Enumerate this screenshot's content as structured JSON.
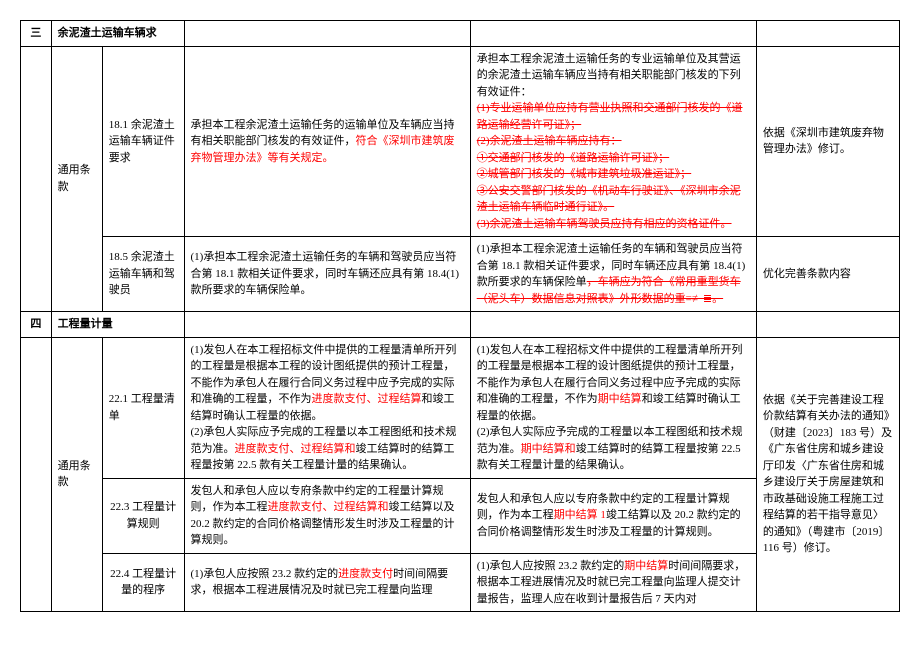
{
  "sections": {
    "s1": {
      "num": "三",
      "title": "余泥渣土运输车辆求",
      "category": "通用条款",
      "rows": {
        "r1": {
          "clause": "18.1 余泥渣土运输车辆证件要求",
          "old_p1": "承担本工程余泥渣土运输任务的运输单位及车辆应当持有相关职能部门核发的有效证件，",
          "old_red1": "符合《深圳市建筑废弃物管理办法》等有关规定。",
          "new_p1": "承担本工程余泥渣土运输任务的专业运输单位及其营运的余泥渣土运输车辆应当持有相关职能部门核发的下列有效证件：",
          "new_strike1": "(1)专业运输单位应持有营业执照和交通部门核发的《道路运输经营许可证》；",
          "new_strike2": "(2)余泥渣土运输车辆应持有：",
          "new_strike3": "①交通部门核发的《道路运输许可证》；",
          "new_strike4": "②城管部门核发的《城市建筑垃圾准运证》；",
          "new_strike5": "③公安交警部门核发的《机动车行驶证》、《深圳市余泥渣土运输车辆临时通行证》。",
          "new_strike6": "(3)余泥渣土运输车辆驾驶员应持有相应的资格证件。",
          "note": "依据《深圳市建筑废弃物管理办法》修订。"
        },
        "r2": {
          "clause": "18.5 余泥渣土运输车辆和驾驶员",
          "old": "(1)承担本工程余泥渣土运输任务的车辆和驾驶员应当符合第 18.1 款相关证件要求，同时车辆还应具有第 18.4(1)款所要求的车辆保险单。",
          "new_p1": "(1)承担本工程余泥渣土运输任务的车辆和驾驶员应当符合第 18.1 款相关证件要求，同时车辆还应具有第 18.4(1)款所要求的车辆保险单",
          "new_strike1": "，车辆应为符合《常用重型货车（泥头车）数据信息对照表》外形数据的重≡≢≣。",
          "note": "优化完善条款内容"
        }
      }
    },
    "s2": {
      "num": "四",
      "title": "工程量计量",
      "category": "通用条款",
      "note": "依据《关于完善建设工程价款结算有关办法的通知》（财建〔2023〕183 号）及《广东省住房和城乡建设厅印发〈广东省住房和城乡建设厅关于房屋建筑和市政基础设施工程施工过程结算的若干指导意见〉的通知》（粤建市〔2019〕116 号）修订。",
      "rows": {
        "r1": {
          "clause": "22.1 工程量清单",
          "old_p1": "(1)发包人在本工程招标文件中提供的工程量清单所开列的工程量是根据本工程的设计图纸提供的预计工程量，不能作为承包人在履行合同义务过程中应予完成的实际和准确的工程量，不作为",
          "old_red1": "进度款支付、过程结算",
          "old_p1b": "和竣工结算时确认工程量的依据。",
          "old_p2": "(2)承包人实际应予完成的工程量以本工程图纸和技术规范为准。",
          "old_red2": "进度款支付、过程结算和",
          "old_p2b": "竣工结算时的结算工程量按第 22.5 款有关工程量计量的结果确认。",
          "new_p1": "(1)发包人在本工程招标文件中提供的工程量清单所开列的工程量是根据本工程的设计图纸提供的预计工程量，不能作为承包人在履行合同义务过程中应予完成的实际和准确的工程量，不作为",
          "new_red1": "期中结算",
          "new_p1b": "和竣工结算时确认工程量的依据。",
          "new_p2": "(2)承包人实际应予完成的工程量以本工程图纸和技术规范为准。",
          "new_red2": "期中结算和",
          "new_p2b": "竣工结算时的结算工程量按第 22.5 款有关工程量计量的结果确认。"
        },
        "r2": {
          "clause": "22.3 工程量计算规则",
          "old_p1": "发包人和承包人应以专府条款中约定的工程量计算规则，作为本工程",
          "old_red1": "进度款支付、过程结算和",
          "old_p1b": "竣工结算以及 20.2 款约定的合同价格调整情形发生时涉及工程量的计算规则。",
          "new_p1": "发包人和承包人应以专府条款中约定的工程量计算规则，作为本工程",
          "new_red1": "期中结算 1",
          "new_p1b": "竣工结算以及 20.2 款约定的合同价格调整情形发生时涉及工程量的计算规则。"
        },
        "r3": {
          "clause": "22.4 工程量计量的程序",
          "old_p1": "(1)承包人应按照 23.2 款约定的",
          "old_red1": "进度款支付",
          "old_p1b": "时间间隔要求，根据本工程进展情况及时就已完工程量向监理",
          "new_p1": "(1)承包人应按照 23.2 款约定的",
          "new_red1": "期中结算",
          "new_p1b": "时间间隔要求，根据本工程进展情况及时就已完工程量向监理人提交计量报告，监理人应在收到计量报告后 7 天内对"
        }
      }
    }
  }
}
